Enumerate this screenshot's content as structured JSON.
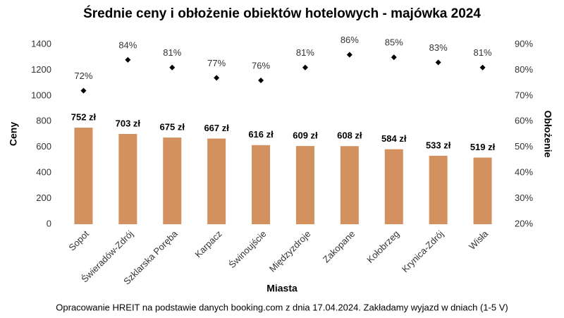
{
  "chart_data": {
    "type": "bar",
    "title": "Średnie ceny i obłożenie obiektów hotelowych - majówka 2024",
    "x_label": "Miasta",
    "y_label": "Ceny",
    "y2_label": "Obłożenie",
    "source": "Opracowanie HREIT na podstawie danych booking.com z dnia 17.04.2024. Zakładamy wyjazd w dniach (1-5 V)",
    "categories": [
      "Sopot",
      "Świeradów-Zdrój",
      "Szklarska Poręba",
      "Karpacz",
      "Świnoujście",
      "Międzyzdroje",
      "Zakopane",
      "Kołobrzeg",
      "Krynica-Zdrój",
      "Wisła"
    ],
    "series": [
      {
        "type": "bar",
        "color": "#d3915f",
        "values": [
          752,
          703,
          675,
          667,
          616,
          609,
          608,
          584,
          533,
          519
        ],
        "value_labels": [
          "752 zł",
          "703 zł",
          "675 zł",
          "667 zł",
          "616 zł",
          "609 zł",
          "608 zł",
          "584 zł",
          "533 zł",
          "519 zł"
        ]
      },
      {
        "type": "scatter",
        "axis": "y2",
        "color": "#000000",
        "values": [
          72,
          84,
          81,
          77,
          76,
          81,
          86,
          85,
          83,
          81
        ],
        "value_labels": [
          "72%",
          "84%",
          "81%",
          "77%",
          "76%",
          "81%",
          "86%",
          "85%",
          "83%",
          "81%"
        ]
      }
    ],
    "ylim": [
      0,
      1400
    ],
    "yticks": [
      0,
      200,
      400,
      600,
      800,
      1000,
      1200,
      1400
    ],
    "y2lim": [
      20,
      90
    ],
    "y2ticks": [
      {
        "value": 20,
        "label": "20%"
      },
      {
        "value": 30,
        "label": "30%"
      },
      {
        "value": 40,
        "label": "40%"
      },
      {
        "value": 50,
        "label": "50%"
      },
      {
        "value": 60,
        "label": "60%"
      },
      {
        "value": 70,
        "label": "70%"
      },
      {
        "value": 80,
        "label": "80%"
      },
      {
        "value": 90,
        "label": "90%"
      }
    ],
    "grid": false
  }
}
